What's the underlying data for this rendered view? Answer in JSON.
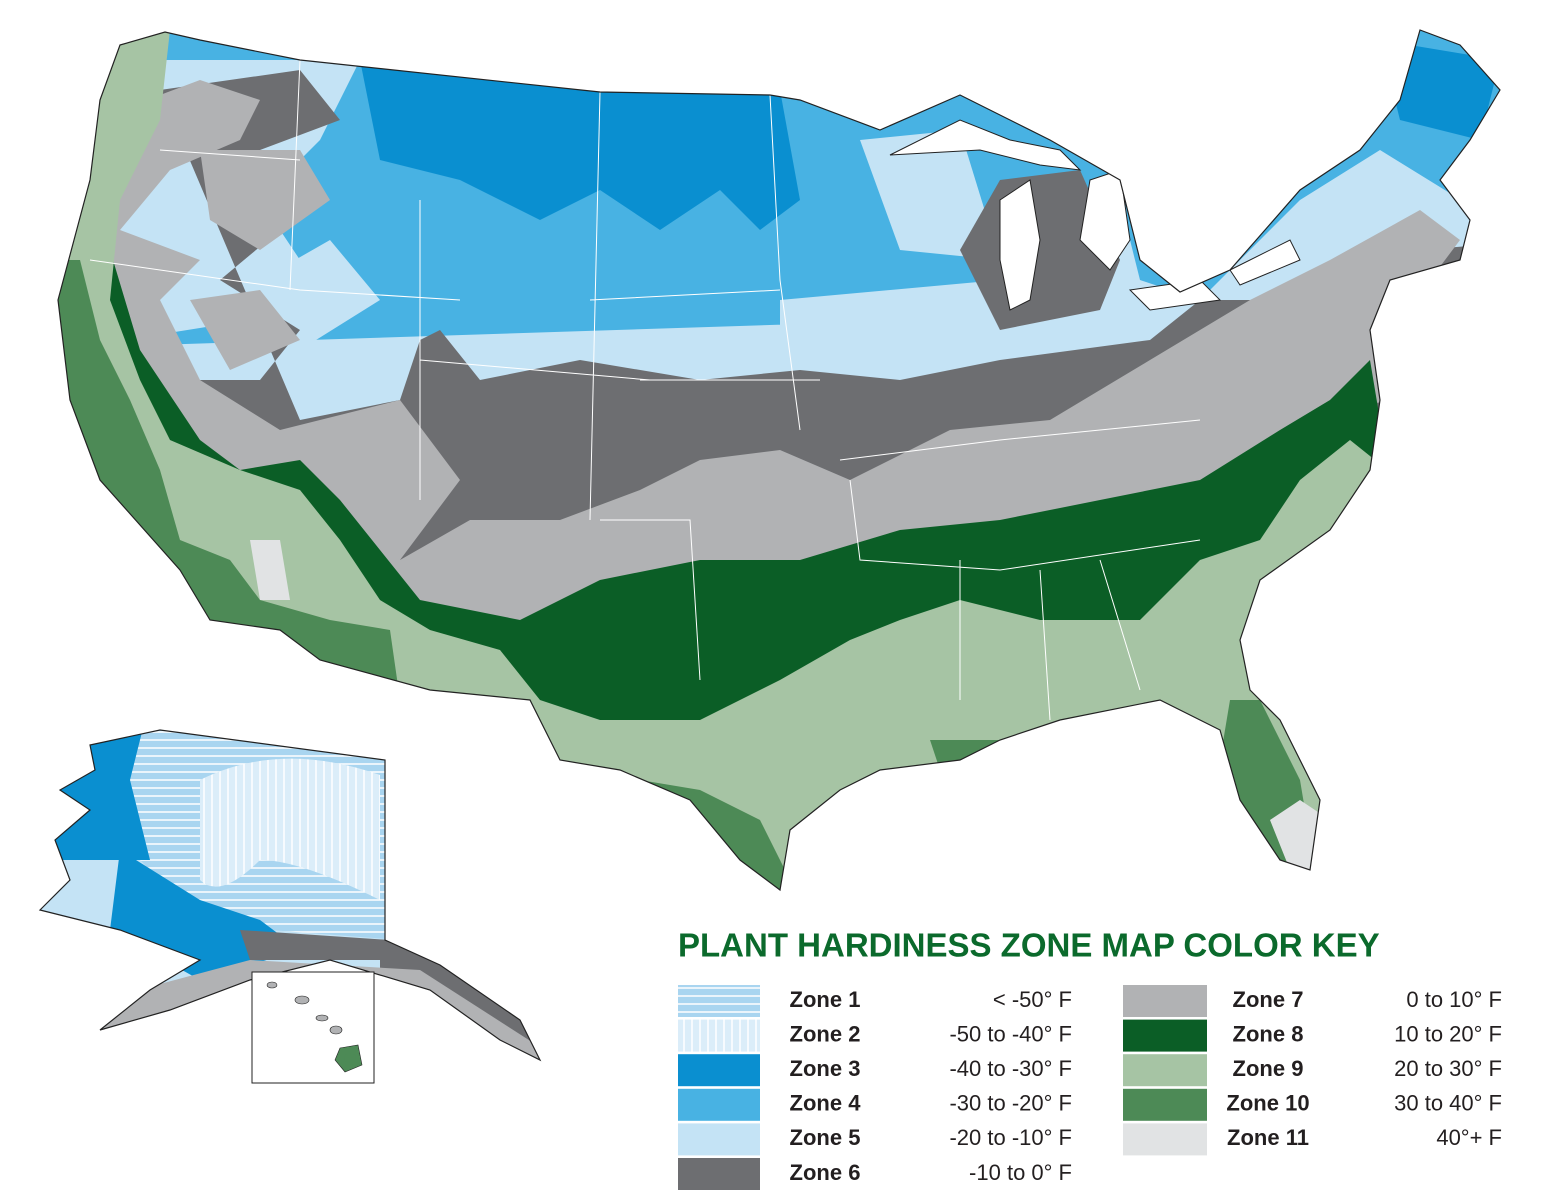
{
  "map": {
    "title": "PLANT HARDINESS ZONE MAP COLOR KEY",
    "title_color": "#0b6a2c",
    "zones": [
      {
        "name": "Zone 1",
        "range": "< -50° F",
        "color": "#dbedf9"
      },
      {
        "name": "Zone 2",
        "range": "-50 to -40° F",
        "color": "#a9d5f0"
      },
      {
        "name": "Zone 3",
        "range": "-40 to -30° F",
        "color": "#0a8fd0"
      },
      {
        "name": "Zone 4",
        "range": "-30 to -20° F",
        "color": "#48b2e3"
      },
      {
        "name": "Zone 5",
        "range": "-20 to -10° F",
        "color": "#c4e3f5"
      },
      {
        "name": "Zone 6",
        "range": "-10 to 0° F",
        "color": "#6d6e71"
      },
      {
        "name": "Zone 7",
        "range": "0 to 10° F",
        "color": "#b1b2b4"
      },
      {
        "name": "Zone 8",
        "range": "10 to 20° F",
        "color": "#0b5e26"
      },
      {
        "name": "Zone 9",
        "range": "20 to 30° F",
        "color": "#a6c4a4"
      },
      {
        "name": "Zone 10",
        "range": "30 to 40° F",
        "color": "#4d8a56"
      },
      {
        "name": "Zone 11",
        "range": "40°+ F",
        "color": "#e1e3e4"
      }
    ]
  }
}
